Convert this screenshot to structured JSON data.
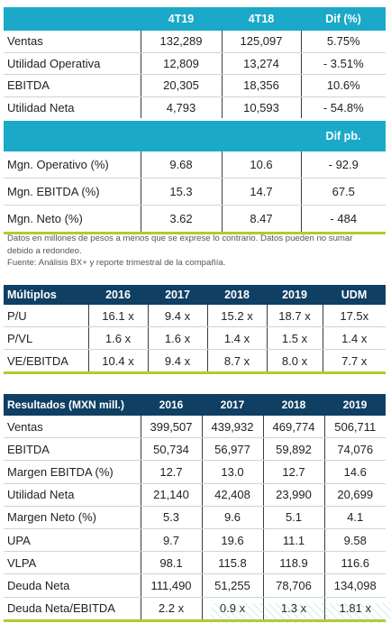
{
  "table1": {
    "headers": [
      "",
      "4T19",
      "4T18",
      "Dif (%)"
    ],
    "rows": [
      [
        "Ventas",
        "132,289",
        "125,097",
        "5.75%"
      ],
      [
        "Utilidad Operativa",
        "12,809",
        "13,274",
        "- 3.51%"
      ],
      [
        "EBITDA",
        "20,305",
        "18,356",
        "10.6%"
      ],
      [
        "Utilidad Neta",
        "4,793",
        "10,593",
        "- 54.8%"
      ]
    ]
  },
  "table1b": {
    "headers": [
      "",
      "",
      "",
      "Dif pb."
    ],
    "rows": [
      [
        "Mgn. Operativo (%)",
        "9.68",
        "10.6",
        "- 92.9"
      ],
      [
        "Mgn. EBITDA (%)",
        "15.3",
        "14.7",
        "67.5"
      ],
      [
        "Mgn. Neto (%)",
        "3.62",
        "8.47",
        "- 484"
      ]
    ]
  },
  "note": {
    "line1": "Datos en millones de pesos a menos que se exprese lo contrario. Datos pueden no sumar debido a redondeo.",
    "line2": "Fuente: Análisis BX+ y reporte trimestral de la compañía."
  },
  "table2": {
    "headers": [
      "Múltiplos",
      "2016",
      "2017",
      "2018",
      "2019",
      "UDM"
    ],
    "rows": [
      [
        "P/U",
        "16.1 x",
        "9.4 x",
        "15.2 x",
        "18.7 x",
        "17.5x"
      ],
      [
        "P/VL",
        "1.6 x",
        "1.6 x",
        "1.4 x",
        "1.5 x",
        "1.4 x"
      ],
      [
        "VE/EBITDA",
        "10.4 x",
        "9.4 x",
        "8.7 x",
        "8.0 x",
        "7.7 x"
      ]
    ]
  },
  "table3": {
    "headers": [
      "Resultados (MXN mill.)",
      "2016",
      "2017",
      "2018",
      "2019"
    ],
    "rows": [
      [
        "Ventas",
        "399,507",
        "439,932",
        "469,774",
        "506,711"
      ],
      [
        "EBITDA",
        "50,734",
        "56,977",
        "59,892",
        "74,076"
      ],
      [
        "Margen EBITDA (%)",
        "12.7",
        "13.0",
        "12.7",
        "14.6"
      ],
      [
        "Utilidad Neta",
        "21,140",
        "42,408",
        "23,990",
        "20,699"
      ],
      [
        "Margen Neto (%)",
        "5.3",
        "9.6",
        "5.1",
        "4.1"
      ],
      [
        "UPA",
        "9.7",
        "19.6",
        "11.1",
        "9.58"
      ],
      [
        "VLPA",
        "98.1",
        "115.8",
        "118.9",
        "116.6"
      ],
      [
        "Deuda Neta",
        "111,490",
        "51,255",
        "78,706",
        "134,098"
      ],
      [
        "Deuda Neta/EBITDA",
        "2.2 x",
        "0.9 x",
        "1.3 x",
        "1.81 x"
      ]
    ]
  },
  "colors": {
    "header_teal": "#1aa9c8",
    "header_navy": "#0f3f63",
    "accent_green": "#b6c92c"
  }
}
